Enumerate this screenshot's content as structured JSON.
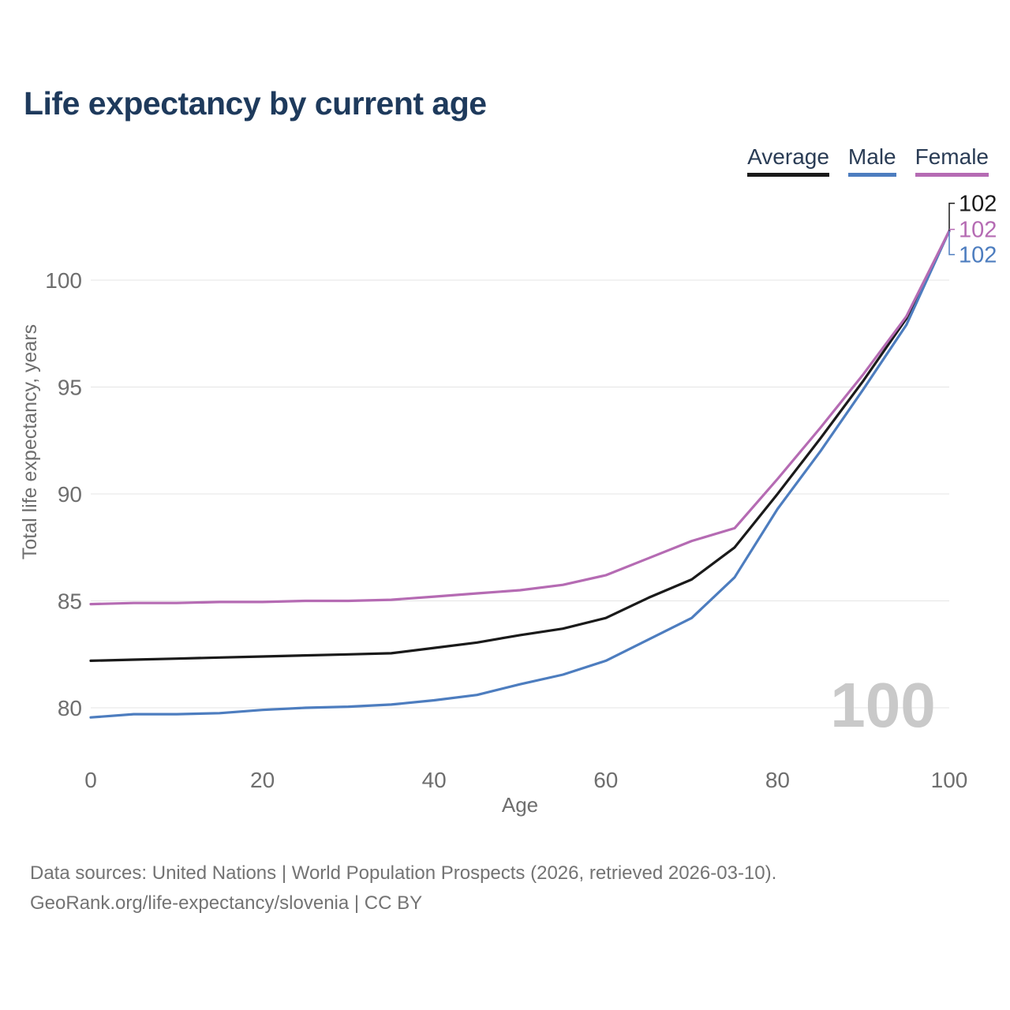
{
  "header": {
    "title": "Life expectancy by current age"
  },
  "legend": {
    "items": [
      {
        "label": "Average",
        "color": "#1a1a1a"
      },
      {
        "label": "Male",
        "color": "#4d7dbf"
      },
      {
        "label": "Female",
        "color": "#b56bb3"
      }
    ]
  },
  "chart_data": {
    "type": "line",
    "title": "Life expectancy by current age",
    "xlabel": "Age",
    "ylabel": "Total life expectancy, years",
    "xlim": [
      0,
      100
    ],
    "ylim": [
      79.3,
      102.6
    ],
    "x_ticks": [
      0,
      20,
      40,
      60,
      80,
      100
    ],
    "y_ticks": [
      80,
      85,
      90,
      95,
      100
    ],
    "grid": "horizontal-only",
    "legend_position": "top-right",
    "watermark": "100",
    "x": [
      0,
      5,
      10,
      15,
      20,
      25,
      30,
      35,
      40,
      45,
      50,
      55,
      60,
      65,
      70,
      75,
      80,
      85,
      90,
      95,
      100
    ],
    "series": [
      {
        "name": "Average",
        "color": "#1a1a1a",
        "end_label": "102",
        "values": [
          82.2,
          82.25,
          82.3,
          82.35,
          82.4,
          82.45,
          82.5,
          82.55,
          82.8,
          83.05,
          83.4,
          83.7,
          84.2,
          85.15,
          86.0,
          87.5,
          90.0,
          92.6,
          95.3,
          98.2,
          102.3
        ]
      },
      {
        "name": "Male",
        "color": "#4d7dbf",
        "end_label": "102",
        "values": [
          79.55,
          79.7,
          79.7,
          79.75,
          79.9,
          80.0,
          80.05,
          80.15,
          80.35,
          80.6,
          81.1,
          81.55,
          82.2,
          83.2,
          84.2,
          86.1,
          89.3,
          92.0,
          94.9,
          97.9,
          102.3
        ]
      },
      {
        "name": "Female",
        "color": "#b56bb3",
        "end_label": "102",
        "values": [
          84.85,
          84.9,
          84.9,
          84.95,
          84.95,
          85.0,
          85.0,
          85.05,
          85.2,
          85.35,
          85.5,
          85.75,
          86.2,
          87.0,
          87.8,
          88.4,
          90.7,
          93.1,
          95.6,
          98.3,
          102.3
        ]
      }
    ]
  },
  "footer": {
    "line1": "Data sources: United Nations | World Population Prospects (2026, retrieved 2026-03-10).",
    "line2": "GeoRank.org/life-expectancy/slovenia | CC BY"
  }
}
